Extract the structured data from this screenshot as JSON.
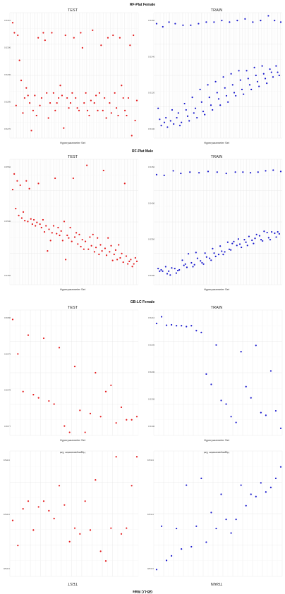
{
  "figure": {
    "sections": [
      {
        "title": "RF-Plat Female",
        "xlabel": "Hyperparameter Set",
        "left_panel": {
          "title": "TEST",
          "y_ticks": [
            "0.5310",
            "0.5300",
            "0.5290",
            "0.5280",
            "0.5270"
          ]
        },
        "right_panel": {
          "title": "TRAIN",
          "y_ticks": [
            "0.5160",
            "0.5140",
            "0.5120",
            "0.5100"
          ]
        }
      },
      {
        "title": "RF-Plat Male",
        "xlabel": "Hyperparameter Set",
        "left_panel": {
          "title": "TEST",
          "y_ticks": [
            "0.5550",
            "0.5500",
            "0.5450"
          ]
        },
        "right_panel": {
          "title": "TRAIN",
          "y_ticks": [
            "0.5450",
            "0.5400",
            "0.5350",
            "0.5300"
          ]
        }
      },
      {
        "title": "GB-LC Female",
        "xlabel": "Hyperparameter Set",
        "left_panel": {
          "title": "TEST",
          "y_ticks": [
            "0.5080",
            "0.5079",
            "0.5078",
            "0.5077"
          ]
        },
        "right_panel": {
          "title": "TRAIN",
          "y_ticks": [
            "0.5210",
            "0.5205",
            "0.5200",
            "0.5195",
            "0.5190"
          ]
        }
      },
      {
        "title": "GB-LC Male",
        "xlabel": "Hyperparameter Set",
        "left_panel": {
          "title": "TEST",
          "y_ticks": [
            "0.5524",
            "0.5522",
            "0.5520"
          ]
        },
        "right_panel": {
          "title": "TRAIN",
          "y_ticks": [
            "0.5324",
            "0.5322",
            "0.5320"
          ]
        }
      }
    ]
  },
  "chart_data": [
    {
      "type": "scatter",
      "title": "RF-Plat Female — TEST",
      "xlabel": "Hyperparameter Set",
      "ylim": [
        0.5265,
        0.5315
      ],
      "color": "#e41a1c",
      "values": [
        0.5311,
        0.5307,
        0.5278,
        0.5306,
        0.5296,
        0.5288,
        0.5275,
        0.5281,
        0.5285,
        0.5282,
        0.5279,
        0.5268,
        0.5276,
        0.5282,
        0.5274,
        0.5305,
        0.5278,
        0.5281,
        0.5307,
        0.5304,
        0.5283,
        0.5273,
        0.5279,
        0.5307,
        0.5283,
        0.5276,
        0.5279,
        0.5281,
        0.5286,
        0.5282,
        0.5269,
        0.5306,
        0.5281,
        0.5277,
        0.5279,
        0.5283,
        0.5305,
        0.5281,
        0.5277,
        0.5276,
        0.5307,
        0.5301,
        0.5279,
        0.5283,
        0.5276,
        0.5274,
        0.528,
        0.5308,
        0.5279,
        0.5282,
        0.5276,
        0.5283,
        0.5302,
        0.5276,
        0.5281,
        0.5273,
        0.5305,
        0.5279,
        0.5275,
        0.5306,
        0.5283,
        0.5277,
        0.5274,
        0.5305,
        0.5286,
        0.5281,
        0.5276,
        0.5274,
        0.5281,
        0.5302,
        0.5266,
        0.5306,
        0.5272,
        0.528
      ]
    },
    {
      "type": "scatter",
      "title": "RF-Plat Female — TRAIN",
      "xlabel": "Hyperparameter Set",
      "ylim": [
        0.5085,
        0.5165
      ],
      "color": "#1a1acd",
      "values": [
        0.5158,
        0.5104,
        0.5097,
        0.5093,
        0.5156,
        0.5095,
        0.5098,
        0.5092,
        0.5159,
        0.5096,
        0.5103,
        0.5094,
        0.5158,
        0.5098,
        0.5101,
        0.5093,
        0.5095,
        0.5157,
        0.5107,
        0.5103,
        0.5099,
        0.5096,
        0.5157,
        0.5111,
        0.5101,
        0.5104,
        0.5098,
        0.5158,
        0.5116,
        0.5108,
        0.5102,
        0.51,
        0.5159,
        0.5119,
        0.5111,
        0.5106,
        0.5103,
        0.5159,
        0.5121,
        0.5114,
        0.511,
        0.5106,
        0.516,
        0.5124,
        0.5117,
        0.5112,
        0.5108,
        0.5159,
        0.5126,
        0.5119,
        0.5114,
        0.5112,
        0.516,
        0.5128,
        0.5122,
        0.5116,
        0.5113,
        0.5161,
        0.5128,
        0.5123,
        0.5119,
        0.5116,
        0.5159,
        0.513,
        0.5125,
        0.5121,
        0.5118,
        0.516,
        0.5131,
        0.5126,
        0.5123,
        0.512,
        0.5163,
        0.5129,
        0.5127,
        0.5124,
        0.516,
        0.5131,
        0.5127,
        0.5125,
        0.5159
      ]
    },
    {
      "type": "scatter",
      "title": "RF-Plat Male — TEST",
      "xlabel": "Hyperparameter Set",
      "ylim": [
        0.542,
        0.5565
      ],
      "color": "#e41a1c",
      "values": [
        0.553,
        0.5548,
        0.5508,
        0.554,
        0.55,
        0.5535,
        0.5497,
        0.5504,
        0.5494,
        0.554,
        0.5493,
        0.5531,
        0.5496,
        0.549,
        0.5495,
        0.5488,
        0.5492,
        0.5537,
        0.549,
        0.5486,
        0.5495,
        0.5481,
        0.5488,
        0.5459,
        0.5484,
        0.5471,
        0.548,
        0.5488,
        0.5543,
        0.5479,
        0.5486,
        0.5477,
        0.5482,
        0.5471,
        0.5493,
        0.5449,
        0.5477,
        0.5474,
        0.5486,
        0.547,
        0.5543,
        0.5475,
        0.548,
        0.5467,
        0.5478,
        0.5464,
        0.5472,
        0.5461,
        0.547,
        0.5558,
        0.5461,
        0.5475,
        0.5465,
        0.5478,
        0.5458,
        0.5463,
        0.5474,
        0.5455,
        0.5466,
        0.5459,
        0.5552,
        0.5462,
        0.5454,
        0.5474,
        0.5458,
        0.5465,
        0.5448,
        0.5455,
        0.546,
        0.5449,
        0.5466,
        0.5451,
        0.5456,
        0.5446,
        0.5537,
        0.5453,
        0.5444,
        0.5447,
        0.5449,
        0.5441,
        0.5444,
        0.5451,
        0.5447
      ]
    },
    {
      "type": "scatter",
      "title": "RF-Plat Male — TRAIN",
      "xlabel": "Hyperparameter Set",
      "ylim": [
        0.5275,
        0.547
      ],
      "color": "#1a1acd",
      "values": [
        0.5446,
        0.53,
        0.5296,
        0.5298,
        0.5296,
        0.5445,
        0.5303,
        0.5292,
        0.5296,
        0.529,
        0.5301,
        0.5452,
        0.53,
        0.5293,
        0.5297,
        0.5298,
        0.5448,
        0.5313,
        0.5305,
        0.5307,
        0.5302,
        0.5323,
        0.545,
        0.5309,
        0.5303,
        0.5306,
        0.5325,
        0.5316,
        0.5449,
        0.5312,
        0.5309,
        0.5307,
        0.5324,
        0.5318,
        0.5451,
        0.5316,
        0.5313,
        0.5331,
        0.5324,
        0.5319,
        0.545,
        0.5322,
        0.5335,
        0.5327,
        0.5322,
        0.5326,
        0.5448,
        0.5341,
        0.533,
        0.5329,
        0.5339,
        0.5342,
        0.545,
        0.5336,
        0.5346,
        0.5338,
        0.5333,
        0.545,
        0.5345,
        0.5341,
        0.5336,
        0.535,
        0.5449,
        0.5344,
        0.5339,
        0.5347,
        0.5353,
        0.545,
        0.5351,
        0.5345,
        0.5343,
        0.5358,
        0.5452,
        0.5356,
        0.5348,
        0.5345,
        0.5357,
        0.5453,
        0.5355,
        0.5349,
        0.5357,
        0.5354,
        0.5451
      ]
    },
    {
      "type": "scatter",
      "title": "GB-LC Female — TEST",
      "xlabel": "Hyperparameter Set",
      "ylim": [
        0.50765,
        0.50805
      ],
      "color": "#e41a1c",
      "values": [
        0.50802,
        0.50791,
        0.50779,
        0.50797,
        0.50778,
        0.50777,
        0.50796,
        0.50776,
        0.50775,
        0.50793,
        0.50768,
        0.50766,
        0.50787,
        0.50773,
        0.50766,
        0.50772,
        0.50785,
        0.50771,
        0.50779,
        0.50781,
        0.50769,
        0.50774,
        0.5077,
        0.5077,
        0.50771
      ]
    },
    {
      "type": "scatter",
      "title": "GB-LC Female — TRAIN",
      "xlabel": "Hyperparameter Set",
      "ylim": [
        0.51875,
        0.52155
      ],
      "color": "#1a1acd",
      "values": [
        0.52125,
        0.5214,
        0.52121,
        0.52122,
        0.5212,
        0.5212,
        0.52118,
        0.5212,
        0.52109,
        0.52105,
        0.52012,
        0.51989,
        0.52077,
        0.51953,
        0.51945,
        0.51917,
        0.51904,
        0.52062,
        0.51984,
        0.51959,
        0.52076,
        0.51926,
        0.5192,
        0.52019,
        0.5193,
        0.51891
      ]
    },
    {
      "type": "scatter",
      "title": "GB-LC Male — TEST",
      "xlabel": "Hyperparameter Set",
      "ylim": [
        0.55195,
        0.5526
      ],
      "color": "#e41a1c",
      "values": [
        0.55198,
        0.55213,
        0.55235,
        0.55238,
        0.55198,
        0.55235,
        0.55252,
        0.55247,
        0.5521,
        0.55236,
        0.55221,
        0.55238,
        0.55235,
        0.55242,
        0.55223,
        0.55213,
        0.5523,
        0.55226,
        0.55221,
        0.55224,
        0.55236,
        0.55221,
        0.55225,
        0.55244,
        0.55231
      ]
    },
    {
      "type": "scatter",
      "title": "GB-LC Male — TRAIN",
      "xlabel": "Hyperparameter Set",
      "ylim": [
        0.53195,
        0.5325
      ],
      "color": "#1a1acd",
      "values": [
        0.53202,
        0.53207,
        0.53211,
        0.53213,
        0.53209,
        0.53215,
        0.53214,
        0.53219,
        0.5321,
        0.53225,
        0.53231,
        0.53225,
        0.53214,
        0.53229,
        0.53222,
        0.53235,
        0.53207,
        0.53228,
        0.53237,
        0.5321,
        0.53238,
        0.53229,
        0.53241,
        0.53243,
        0.53228,
        0.53247
      ]
    }
  ]
}
